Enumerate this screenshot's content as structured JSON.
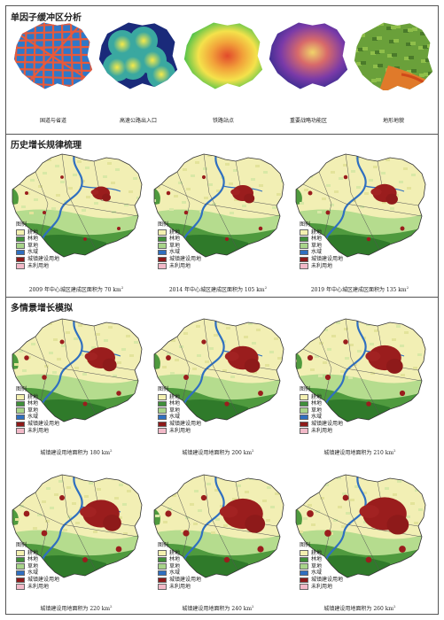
{
  "sections": {
    "factors_title": "单因子缓冲区分析",
    "history_title": "历史增长规律梳理",
    "scenario_title": "多情景增长模拟"
  },
  "factors": [
    {
      "label": "国道与省道",
      "icon": "road-network-map"
    },
    {
      "label": "高速公路出入口",
      "icon": "highway-exit-buffer-map"
    },
    {
      "label": "铁路站点",
      "icon": "railway-station-buffer-map"
    },
    {
      "label": "重要战略功能区",
      "icon": "strategic-zone-buffer-map"
    },
    {
      "label": "地形地貌",
      "icon": "terrain-map"
    }
  ],
  "legend": {
    "title": "图例",
    "items": [
      {
        "label": "耕地",
        "color": "#f3f0b0"
      },
      {
        "label": "林地",
        "color": "#3f8f3a"
      },
      {
        "label": "草地",
        "color": "#a8d48a"
      },
      {
        "label": "水域",
        "color": "#2f6fc0"
      },
      {
        "label": "城镇建设用地",
        "color": "#8e1a1a"
      },
      {
        "label": "未利用地",
        "color": "#f2b9c8"
      }
    ]
  },
  "history_maps": [
    {
      "caption_text": "2009 年中心城区建成区面积为 70 km",
      "unit_sup": "2",
      "urban_level": 0.2
    },
    {
      "caption_text": "2014 年中心城区建成区面积为 105 km",
      "unit_sup": "2",
      "urban_level": 0.3
    },
    {
      "caption_text": "2019 年中心城区建成区面积为 135 km",
      "unit_sup": "2",
      "urban_level": 0.38
    }
  ],
  "scenario_maps": [
    {
      "caption_text": "城镇建设用地面积为 180 km",
      "unit_sup": "2",
      "urban_level": 0.5
    },
    {
      "caption_text": "城镇建设用地面积为 200 km",
      "unit_sup": "2",
      "urban_level": 0.58
    },
    {
      "caption_text": "城镇建设用地面积为 210 km",
      "unit_sup": "2",
      "urban_level": 0.64
    },
    {
      "caption_text": "城镇建设用地面积为 220 km",
      "unit_sup": "2",
      "urban_level": 0.74
    },
    {
      "caption_text": "城镇建设用地面积为 240 km",
      "unit_sup": "2",
      "urban_level": 0.84
    },
    {
      "caption_text": "城镇建设用地面积为 260 km",
      "unit_sup": "2",
      "urban_level": 0.94
    }
  ]
}
